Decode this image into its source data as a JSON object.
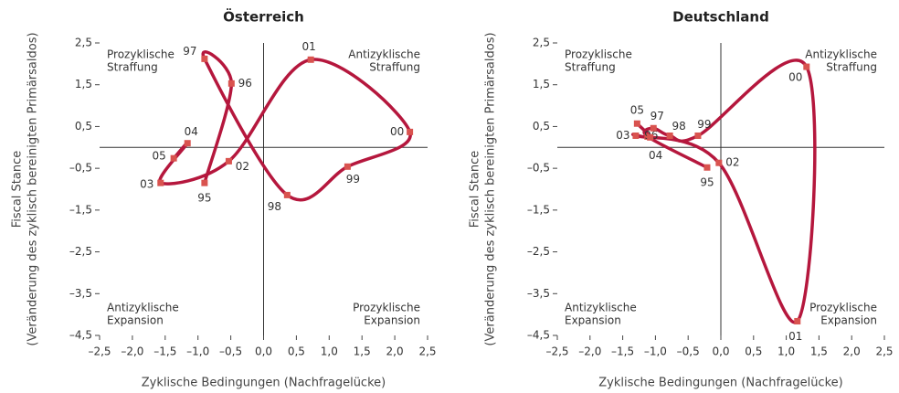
{
  "chart_data": [
    {
      "type": "line",
      "title": "Österreich",
      "xlabel": "Zyklische Bedingungen (Nachfragelücke)",
      "ylabel": [
        "Fiscal Stance",
        "(Veränderung des zyklisch bereinigten Primärsaldos)"
      ],
      "color": "#b5173d",
      "marker_color": "#d9534f",
      "point_labels": [
        "95",
        "96",
        "97",
        "98",
        "99",
        "00",
        "01",
        "02",
        "03",
        "04",
        "05"
      ],
      "x": [
        -0.9,
        -0.49,
        -0.9,
        0.36,
        1.28,
        2.23,
        0.72,
        -0.53,
        -1.57,
        -1.16,
        -1.37
      ],
      "values": [
        -0.85,
        1.53,
        2.12,
        -1.14,
        -0.46,
        0.37,
        2.1,
        -0.33,
        -0.85,
        0.1,
        -0.26
      ],
      "xlim": [
        -2.5,
        2.5
      ],
      "ylim": [
        -4.5,
        2.5
      ],
      "xticks": [
        {
          "value": -2.5,
          "label": "–2,5"
        },
        {
          "value": -2,
          "label": "–2,0"
        },
        {
          "value": -1.5,
          "label": "–1,5"
        },
        {
          "value": -1,
          "label": "–1,0"
        },
        {
          "value": -0.5,
          "label": "–0,5"
        },
        {
          "value": 0,
          "label": "0,0"
        },
        {
          "value": 0.5,
          "label": "0,5"
        },
        {
          "value": 1,
          "label": "1,0"
        },
        {
          "value": 1.5,
          "label": "1,5"
        },
        {
          "value": 2,
          "label": "2,0"
        },
        {
          "value": 2.5,
          "label": "2,5"
        }
      ],
      "yticks": [
        {
          "value": 2.5,
          "label": "2,5"
        },
        {
          "value": 1.5,
          "label": "1,5"
        },
        {
          "value": 0.5,
          "label": "0,5"
        },
        {
          "value": -0.5,
          "label": "–0,5"
        },
        {
          "value": -1.5,
          "label": "–1,5"
        },
        {
          "value": -2.5,
          "label": "–2,5"
        },
        {
          "value": -3.5,
          "label": "–3,5"
        },
        {
          "value": -4.5,
          "label": "–4,5"
        }
      ],
      "annotations": [
        {
          "corner": "top-left",
          "text": [
            "Prozyklische",
            "Straffung"
          ]
        },
        {
          "corner": "top-right",
          "text": [
            "Antizyklische",
            "Straffung"
          ]
        },
        {
          "corner": "bottom-left",
          "text": [
            "Antizyklische",
            "Expansion"
          ]
        },
        {
          "corner": "bottom-right",
          "text": [
            "Prozyklische",
            "Expansion"
          ]
        }
      ]
    },
    {
      "type": "line",
      "title": "Deutschland",
      "xlabel": "Zyklische Bedingungen (Nachfragelücke)",
      "ylabel": [
        "Fiscal Stance",
        "(Veränderung des zyklisch bereinigten Primärsaldos)"
      ],
      "color": "#b5173d",
      "marker_color": "#d9534f",
      "point_labels": [
        "95",
        "96",
        "97",
        "98",
        "99",
        "00",
        "01",
        "02",
        "03",
        "04",
        "05"
      ],
      "x": [
        -0.21,
        -1.12,
        -1.03,
        -0.78,
        -0.35,
        1.31,
        1.17,
        -0.03,
        -1.3,
        -1.08,
        -1.28
      ],
      "values": [
        -0.48,
        0.26,
        0.46,
        0.28,
        0.28,
        1.93,
        -4.16,
        -0.37,
        0.28,
        0.24,
        0.57
      ],
      "xlim": [
        -2.5,
        2.5
      ],
      "ylim": [
        -4.5,
        2.5
      ],
      "xticks": [
        {
          "value": -2.5,
          "label": "–2,5"
        },
        {
          "value": -2,
          "label": "–2,0"
        },
        {
          "value": -1.5,
          "label": "–1,5"
        },
        {
          "value": -1,
          "label": "–1,0"
        },
        {
          "value": -0.5,
          "label": "–0,5"
        },
        {
          "value": 0,
          "label": "0,0"
        },
        {
          "value": 0.5,
          "label": "0,5"
        },
        {
          "value": 1,
          "label": "1,0"
        },
        {
          "value": 1.5,
          "label": "1,5"
        },
        {
          "value": 2,
          "label": "2,0"
        },
        {
          "value": 2.5,
          "label": "2,5"
        }
      ],
      "yticks": [
        {
          "value": 2.5,
          "label": "2,5"
        },
        {
          "value": 1.5,
          "label": "1,5"
        },
        {
          "value": 0.5,
          "label": "0,5"
        },
        {
          "value": -0.5,
          "label": "–0,5"
        },
        {
          "value": -1.5,
          "label": "–1,5"
        },
        {
          "value": -2.5,
          "label": "–2,5"
        },
        {
          "value": -3.5,
          "label": "–3,5"
        },
        {
          "value": -4.5,
          "label": "–4,5"
        }
      ],
      "annotations": [
        {
          "corner": "top-left",
          "text": [
            "Prozyklische",
            "Straffung"
          ]
        },
        {
          "corner": "top-right",
          "text": [
            "Antizyklische",
            "Straffung"
          ]
        },
        {
          "corner": "bottom-left",
          "text": [
            "Antizyklische",
            "Expansion"
          ]
        },
        {
          "corner": "bottom-right",
          "text": [
            "Prozyklische",
            "Expansion"
          ]
        }
      ]
    }
  ]
}
